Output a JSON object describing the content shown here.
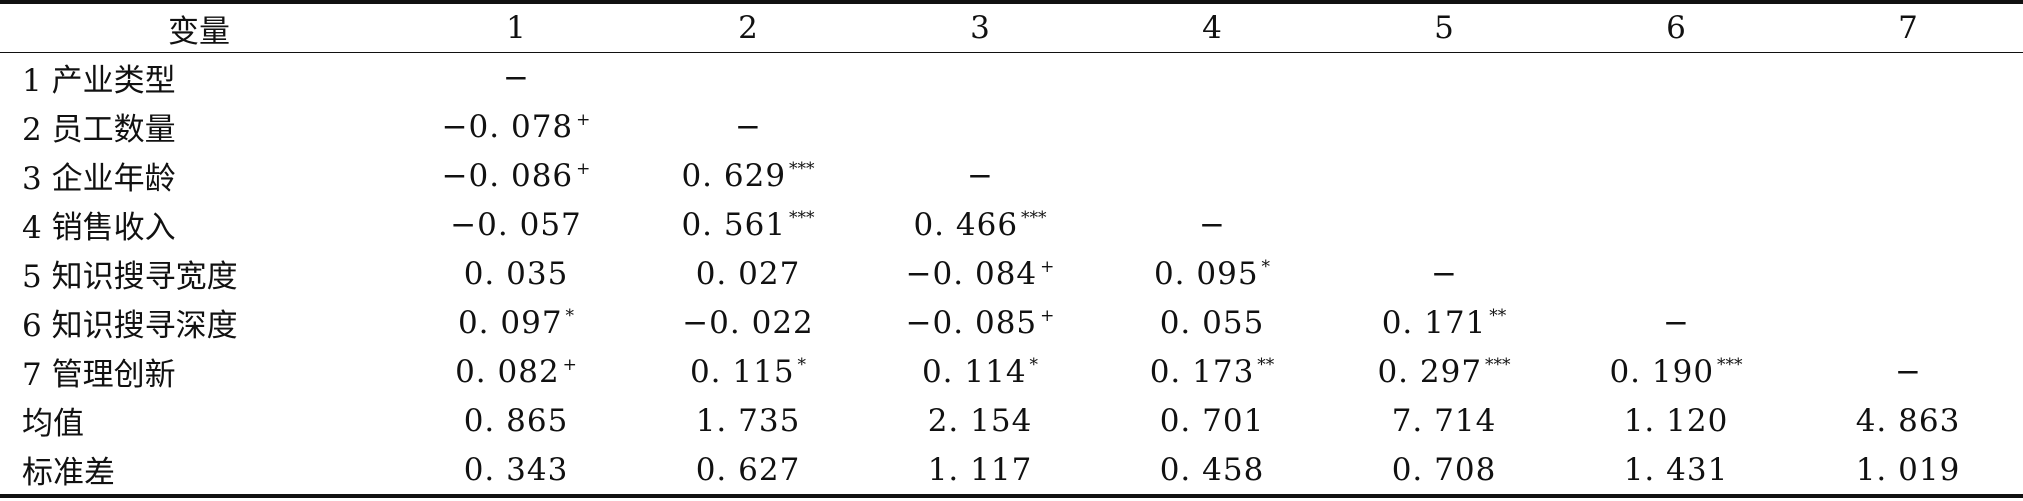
{
  "table": {
    "header": {
      "variable_label": "变量",
      "columns": [
        "1",
        "2",
        "3",
        "4",
        "5",
        "6",
        "7"
      ]
    },
    "rows": [
      {
        "label": "1 产业类型",
        "cells": [
          {
            "value": "−",
            "sig": ""
          },
          {
            "value": "",
            "sig": ""
          },
          {
            "value": "",
            "sig": ""
          },
          {
            "value": "",
            "sig": ""
          },
          {
            "value": "",
            "sig": ""
          },
          {
            "value": "",
            "sig": ""
          },
          {
            "value": "",
            "sig": ""
          }
        ]
      },
      {
        "label": "2 员工数量",
        "cells": [
          {
            "value": "−0. 078",
            "sig": "+"
          },
          {
            "value": "−",
            "sig": ""
          },
          {
            "value": "",
            "sig": ""
          },
          {
            "value": "",
            "sig": ""
          },
          {
            "value": "",
            "sig": ""
          },
          {
            "value": "",
            "sig": ""
          },
          {
            "value": "",
            "sig": ""
          }
        ]
      },
      {
        "label": "3 企业年龄",
        "cells": [
          {
            "value": "−0. 086",
            "sig": "+"
          },
          {
            "value": "0. 629",
            "sig": "***"
          },
          {
            "value": "−",
            "sig": ""
          },
          {
            "value": "",
            "sig": ""
          },
          {
            "value": "",
            "sig": ""
          },
          {
            "value": "",
            "sig": ""
          },
          {
            "value": "",
            "sig": ""
          }
        ]
      },
      {
        "label": "4 销售收入",
        "cells": [
          {
            "value": "−0. 057",
            "sig": ""
          },
          {
            "value": "0. 561",
            "sig": "***"
          },
          {
            "value": "0. 466",
            "sig": "***"
          },
          {
            "value": "−",
            "sig": ""
          },
          {
            "value": "",
            "sig": ""
          },
          {
            "value": "",
            "sig": ""
          },
          {
            "value": "",
            "sig": ""
          }
        ]
      },
      {
        "label": "5 知识搜寻宽度",
        "cells": [
          {
            "value": "0. 035",
            "sig": ""
          },
          {
            "value": "0. 027",
            "sig": ""
          },
          {
            "value": "−0. 084",
            "sig": "+"
          },
          {
            "value": "0. 095",
            "sig": "*"
          },
          {
            "value": "−",
            "sig": ""
          },
          {
            "value": "",
            "sig": ""
          },
          {
            "value": "",
            "sig": ""
          }
        ]
      },
      {
        "label": "6 知识搜寻深度",
        "cells": [
          {
            "value": "0. 097",
            "sig": "*"
          },
          {
            "value": "−0. 022",
            "sig": ""
          },
          {
            "value": "−0. 085",
            "sig": "+"
          },
          {
            "value": "0. 055",
            "sig": ""
          },
          {
            "value": "0. 171",
            "sig": "**"
          },
          {
            "value": "−",
            "sig": ""
          },
          {
            "value": "",
            "sig": ""
          }
        ]
      },
      {
        "label": "7 管理创新",
        "cells": [
          {
            "value": "0. 082",
            "sig": "+"
          },
          {
            "value": "0. 115",
            "sig": "*"
          },
          {
            "value": "0. 114",
            "sig": "*"
          },
          {
            "value": "0. 173",
            "sig": "**"
          },
          {
            "value": "0. 297",
            "sig": "***"
          },
          {
            "value": "0. 190",
            "sig": "***"
          },
          {
            "value": "−",
            "sig": ""
          }
        ]
      },
      {
        "label": "均值",
        "cells": [
          {
            "value": "0. 865",
            "sig": ""
          },
          {
            "value": "1. 735",
            "sig": ""
          },
          {
            "value": "2. 154",
            "sig": ""
          },
          {
            "value": "0. 701",
            "sig": ""
          },
          {
            "value": "7. 714",
            "sig": ""
          },
          {
            "value": "1. 120",
            "sig": ""
          },
          {
            "value": "4. 863",
            "sig": ""
          }
        ]
      },
      {
        "label": "标准差",
        "cells": [
          {
            "value": "0. 343",
            "sig": ""
          },
          {
            "value": "0. 627",
            "sig": ""
          },
          {
            "value": "1. 117",
            "sig": ""
          },
          {
            "value": "0. 458",
            "sig": ""
          },
          {
            "value": "0. 708",
            "sig": ""
          },
          {
            "value": "1. 431",
            "sig": ""
          },
          {
            "value": "1. 019",
            "sig": ""
          }
        ]
      }
    ]
  }
}
